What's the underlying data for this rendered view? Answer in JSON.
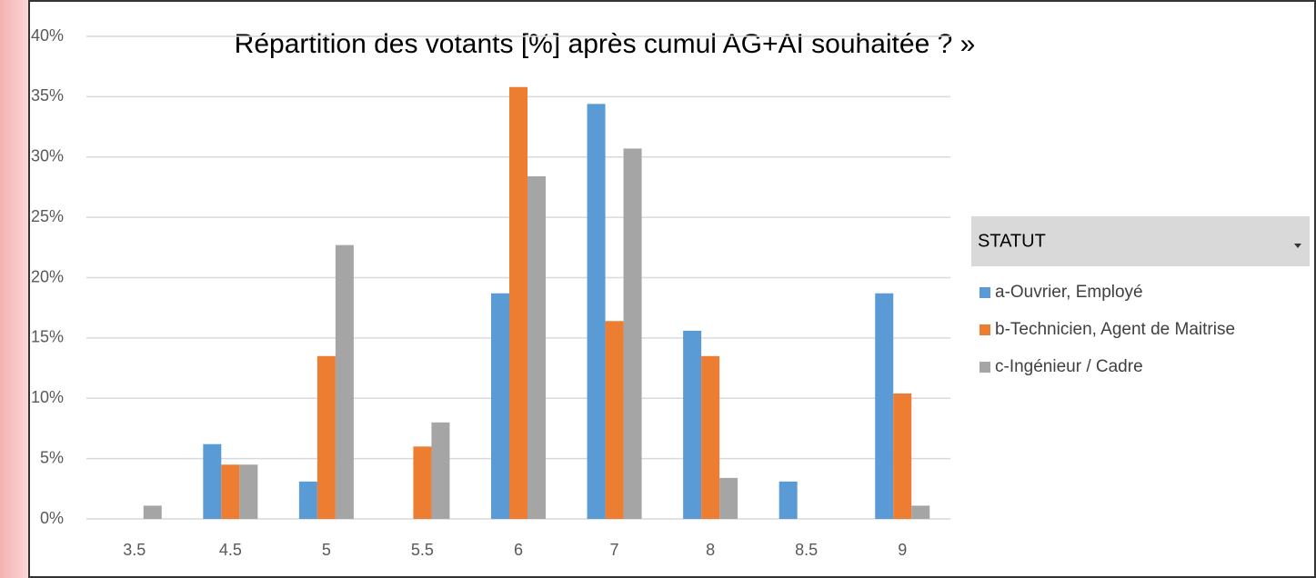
{
  "chart_data": {
    "type": "bar",
    "title": "Répartition des votants [%] après cumul AG+AI souhaitée ? »",
    "categories": [
      "3.5",
      "4.5",
      "5",
      "5.5",
      "6",
      "7",
      "8",
      "8.5",
      "9"
    ],
    "series": [
      {
        "name": "a-Ouvrier, Employé",
        "color": "#5b9bd5",
        "values": [
          0,
          6.2,
          3.1,
          0,
          18.7,
          34.4,
          15.6,
          3.1,
          18.7
        ]
      },
      {
        "name": "b-Technicien, Agent de Maitrise",
        "color": "#ed7d31",
        "values": [
          0,
          4.5,
          13.5,
          6.0,
          35.8,
          16.4,
          13.5,
          0,
          10.4
        ]
      },
      {
        "name": "c-Ingénieur / Cadre",
        "color": "#a5a5a5",
        "values": [
          1.1,
          4.5,
          22.7,
          8.0,
          28.4,
          30.7,
          3.4,
          0,
          1.1
        ]
      }
    ],
    "legend_title": "STATUT",
    "ylim": [
      0,
      40
    ],
    "yticks": [
      {
        "value": 0,
        "label": "0%"
      },
      {
        "value": 5,
        "label": "5%"
      },
      {
        "value": 10,
        "label": "10%"
      },
      {
        "value": 15,
        "label": "15%"
      },
      {
        "value": 20,
        "label": "20%"
      },
      {
        "value": 25,
        "label": "25%"
      },
      {
        "value": 30,
        "label": "30%"
      },
      {
        "value": 35,
        "label": "35%"
      },
      {
        "value": 40,
        "label": "40%"
      }
    ],
    "grid": true
  }
}
